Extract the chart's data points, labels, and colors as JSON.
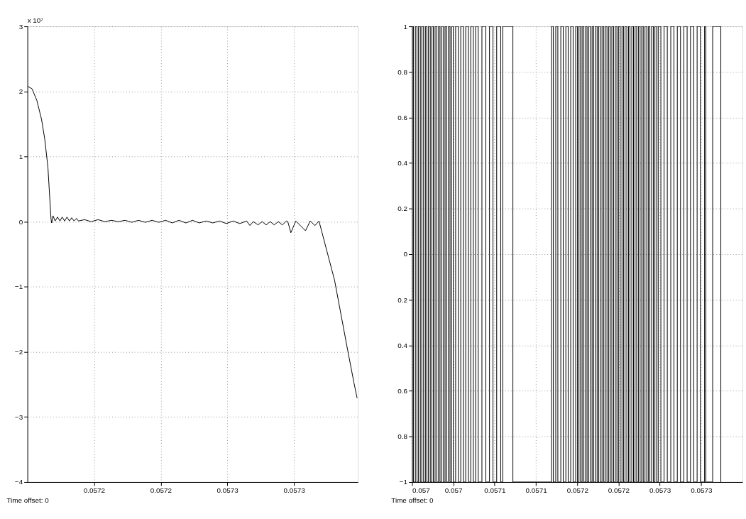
{
  "chart_data": [
    {
      "type": "line",
      "xlabel": "Time offset: 0",
      "annotations": [
        "x 10⁷"
      ],
      "x": [
        0.0571,
        0.0571035,
        0.0571071,
        0.0571106,
        0.057113,
        0.0571154,
        0.0571177,
        0.0571182,
        0.0571192,
        0.0571208,
        0.0571226,
        0.0571244,
        0.0571261,
        0.0571279,
        0.0571297,
        0.0571315,
        0.0571332,
        0.057135,
        0.0571368,
        0.0571383,
        0.0571429,
        0.0571479,
        0.057153,
        0.0571581,
        0.0571631,
        0.0571682,
        0.0571733,
        0.0571783,
        0.0571834,
        0.0571885,
        0.0571935,
        0.0571986,
        0.0572037,
        0.0572087,
        0.0572138,
        0.0572189,
        0.0572239,
        0.057229,
        0.0572341,
        0.0572391,
        0.0572442,
        0.0572493,
        0.0572543,
        0.0572594,
        0.0572645,
        0.057267,
        0.0572695,
        0.0572731,
        0.0572761,
        0.0572792,
        0.0572822,
        0.0572852,
        0.0572883,
        0.0572913,
        0.0572944,
        0.0572954,
        0.0572977,
        0.0573014,
        0.0573087,
        0.0573122,
        0.0573158,
        0.0573188,
        0.0573305,
        0.0573403,
        0.057345,
        0.0573474
      ],
      "series": [
        {
          "color": "#000000",
          "values": [
            2.08,
            2.04,
            1.86,
            1.57,
            1.27,
            0.83,
            0.04,
            -0.02,
            0.09,
            0.01,
            0.07,
            0.01,
            0.07,
            0.01,
            0.07,
            0.01,
            0.06,
            0.01,
            0.05,
            0.01,
            0.03,
            0.0,
            0.03,
            0.0,
            0.02,
            0.0,
            0.02,
            -0.01,
            0.02,
            -0.01,
            0.02,
            -0.01,
            0.02,
            -0.02,
            0.02,
            -0.02,
            0.02,
            -0.02,
            0.01,
            -0.02,
            0.01,
            -0.03,
            0.01,
            -0.03,
            0.01,
            -0.06,
            0.0,
            -0.05,
            0.0,
            -0.05,
            0.0,
            -0.05,
            0.0,
            -0.05,
            0.01,
            0.0,
            -0.17,
            0.01,
            -0.14,
            0.01,
            -0.06,
            0.01,
            -0.9,
            -1.97,
            -2.47,
            -2.71
          ]
        }
      ],
      "xlim": [
        0.0571,
        0.057348
      ],
      "xticks": [
        {
          "value": 0.05715,
          "label": "0.0572"
        },
        {
          "value": 0.0572,
          "label": "0.0572"
        },
        {
          "value": 0.05725,
          "label": "0.0573"
        },
        {
          "value": 0.0573,
          "label": "0.0573"
        }
      ],
      "ylim": [
        -4,
        3
      ],
      "yticks": [
        -4,
        -3,
        -2,
        -1,
        0,
        1,
        2,
        3
      ],
      "grid": true
    },
    {
      "type": "step",
      "xlabel": "Time offset: 0",
      "x": [
        0.057,
        0.0570018,
        0.0570041,
        0.057006,
        0.0570079,
        0.0570101,
        0.0570119,
        0.057014,
        0.0570162,
        0.057018,
        0.0570199,
        0.0570221,
        0.057024,
        0.0570258,
        0.0570279,
        0.05703,
        0.0570321,
        0.0570339,
        0.057036,
        0.0570381,
        0.05704,
        0.0570419,
        0.0570441,
        0.057046,
        0.0570479,
        0.05705,
        0.0570528,
        0.0570561,
        0.057059,
        0.0570622,
        0.057065,
        0.0570683,
        0.0570711,
        0.0570742,
        0.057077,
        0.0570801,
        0.0570846,
        0.0570893,
        0.0570938,
        0.057098,
        0.0571025,
        0.0571074,
        0.0571098,
        0.0571221,
        0.0571689,
        0.0571711,
        0.057174,
        0.0571765,
        0.0571801,
        0.057183,
        0.0571862,
        0.057189,
        0.0571921,
        0.057195,
        0.0571981,
        0.0572003,
        0.0572021,
        0.057204,
        0.0572059,
        0.057208,
        0.0572101,
        0.0572119,
        0.057214,
        0.0572161,
        0.057218,
        0.0572199,
        0.057222,
        0.0572241,
        0.057226,
        0.0572279,
        0.05723,
        0.0572321,
        0.0572339,
        0.057236,
        0.0572381,
        0.05724,
        0.0572419,
        0.057244,
        0.0572461,
        0.057248,
        0.0572499,
        0.057252,
        0.0572541,
        0.057256,
        0.0572579,
        0.05726,
        0.0572621,
        0.0572639,
        0.057266,
        0.0572681,
        0.05727,
        0.0572719,
        0.057274,
        0.0572761,
        0.057278,
        0.0572799,
        0.057282,
        0.0572841,
        0.057286,
        0.0572879,
        0.05729,
        0.0572921,
        0.057294,
        0.0572961,
        0.057298,
        0.0573012,
        0.0573051,
        0.057309,
        0.0573132,
        0.057317,
        0.0573211,
        0.057325,
        0.057329,
        0.057333,
        0.0573371,
        0.057341,
        0.0573451,
        0.057349,
        0.0573541,
        0.0573557,
        0.0573639,
        0.0573738
      ],
      "series": [
        {
          "color": "#000000",
          "values": [
            1,
            -1,
            1,
            -1,
            1,
            -1,
            1,
            -1,
            1,
            -1,
            1,
            -1,
            1,
            -1,
            1,
            -1,
            1,
            -1,
            1,
            -1,
            1,
            -1,
            1,
            -1,
            1,
            -1,
            1,
            -1,
            1,
            -1,
            1,
            -1,
            1,
            -1,
            1,
            -1,
            1,
            -1,
            1,
            -1,
            1,
            -1,
            1,
            -1,
            1,
            -1,
            1,
            -1,
            1,
            -1,
            1,
            -1,
            1,
            -1,
            1,
            -1,
            1,
            -1,
            1,
            -1,
            1,
            -1,
            1,
            -1,
            1,
            -1,
            1,
            -1,
            1,
            -1,
            1,
            -1,
            1,
            -1,
            1,
            -1,
            1,
            -1,
            1,
            -1,
            1,
            -1,
            1,
            -1,
            1,
            -1,
            1,
            -1,
            1,
            -1,
            1,
            -1,
            1,
            -1,
            1,
            -1,
            1,
            -1,
            1,
            -1,
            1,
            -1,
            1,
            -1,
            1,
            -1,
            1,
            -1,
            1,
            -1,
            1,
            -1,
            1,
            -1,
            1,
            -1,
            1,
            -1,
            1,
            -1,
            1,
            -1
          ]
        }
      ],
      "xlim": [
        0.057,
        0.0574
      ],
      "xticks": [
        {
          "value": 0.057,
          "label": "0.057"
        },
        {
          "value": 0.05705,
          "label": "0.057"
        },
        {
          "value": 0.0571,
          "label": "0.0571"
        },
        {
          "value": 0.05715,
          "label": "0.0571"
        },
        {
          "value": 0.0572,
          "label": "0.0572"
        },
        {
          "value": 0.05725,
          "label": "0.0572"
        },
        {
          "value": 0.0573,
          "label": "0.0573"
        },
        {
          "value": 0.05735,
          "label": "0.0573"
        }
      ],
      "ylim": [
        -1,
        1
      ],
      "yticks": [
        -1,
        {
          "value": -0.8,
          "label": "0.8"
        },
        {
          "value": -0.6,
          "label": "0.6"
        },
        {
          "value": -0.4,
          "label": "0.4"
        },
        {
          "value": -0.2,
          "label": "0.2"
        },
        0,
        0.2,
        0.4,
        0.6,
        0.8,
        1
      ],
      "grid": true
    }
  ]
}
